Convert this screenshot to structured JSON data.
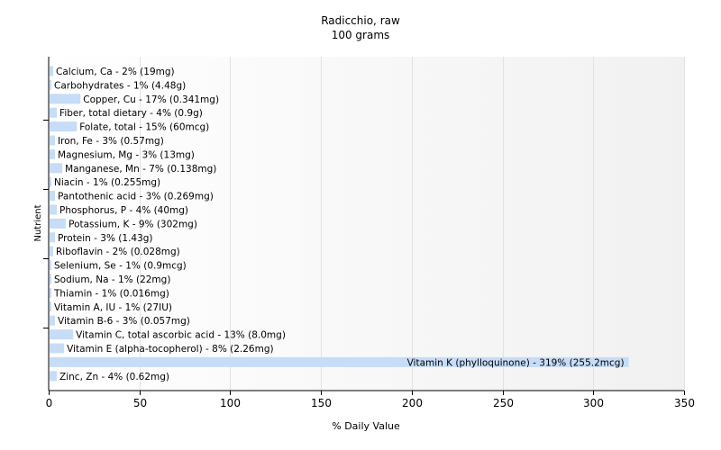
{
  "chart_data": {
    "type": "bar",
    "orientation": "horizontal",
    "title": "Radicchio, raw",
    "subtitle": "100 grams",
    "xlabel": "% Daily Value",
    "ylabel": "Nutrient",
    "xlim": [
      0,
      350
    ],
    "xticks": [
      0,
      50,
      100,
      150,
      200,
      250,
      300,
      350
    ],
    "grid": true,
    "bar_color": "#c6dcf7",
    "categories": [
      "Calcium, Ca",
      "Carbohydrates",
      "Copper, Cu",
      "Fiber, total dietary",
      "Folate, total",
      "Iron, Fe",
      "Magnesium, Mg",
      "Manganese, Mn",
      "Niacin",
      "Pantothenic acid",
      "Phosphorus, P",
      "Potassium, K",
      "Protein",
      "Riboflavin",
      "Selenium, Se",
      "Sodium, Na",
      "Thiamin",
      "Vitamin A, IU",
      "Vitamin B-6",
      "Vitamin C, total ascorbic acid",
      "Vitamin E (alpha-tocopherol)",
      "Vitamin K (phylloquinone)",
      "Zinc, Zn"
    ],
    "values": [
      2,
      1,
      17,
      4,
      15,
      3,
      3,
      7,
      1,
      3,
      4,
      9,
      3,
      2,
      1,
      1,
      1,
      1,
      3,
      13,
      8,
      319,
      4
    ],
    "labels": [
      "Calcium, Ca - 2% (19mg)",
      "Carbohydrates - 1% (4.48g)",
      "Copper, Cu - 17% (0.341mg)",
      "Fiber, total dietary - 4% (0.9g)",
      "Folate, total - 15% (60mcg)",
      "Iron, Fe - 3% (0.57mg)",
      "Magnesium, Mg - 3% (13mg)",
      "Manganese, Mn - 7% (0.138mg)",
      "Niacin - 1% (0.255mg)",
      "Pantothenic acid - 3% (0.269mg)",
      "Phosphorus, P - 4% (40mg)",
      "Potassium, K - 9% (302mg)",
      "Protein - 3% (1.43g)",
      "Riboflavin - 2% (0.028mg)",
      "Selenium, Se - 1% (0.9mcg)",
      "Sodium, Na - 1% (22mg)",
      "Thiamin - 1% (0.016mg)",
      "Vitamin A, IU - 1% (27IU)",
      "Vitamin B-6 - 3% (0.057mg)",
      "Vitamin C, total ascorbic acid - 13% (8.0mg)",
      "Vitamin E (alpha-tocopherol) - 8% (2.26mg)",
      "Vitamin K (phylloquinone) - 319% (255.2mcg)",
      "Zinc, Zn - 4% (0.62mg)"
    ]
  }
}
